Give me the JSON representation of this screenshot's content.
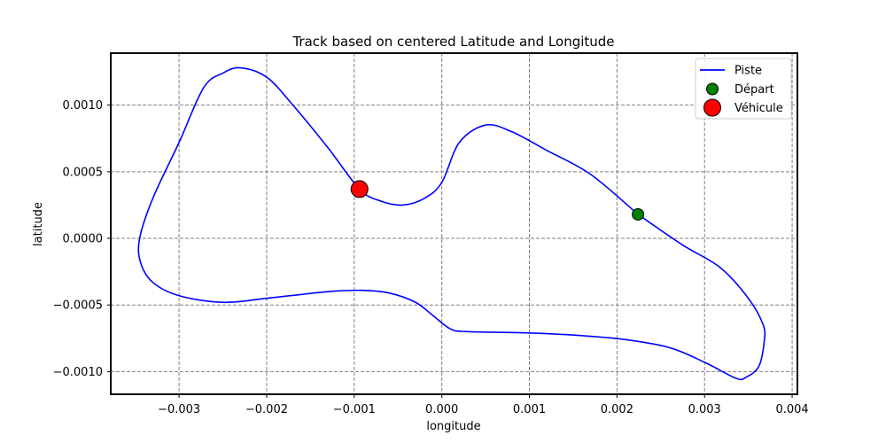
{
  "chart_data": {
    "type": "line",
    "title": "Track based on centered Latitude and Longitude",
    "xlabel": "longitude",
    "ylabel": "latitude",
    "xlim": [
      -0.00378,
      0.00406
    ],
    "ylim": [
      -0.00117,
      0.00139
    ],
    "grid": true,
    "grid_style": "dashed",
    "legend_position": "top-right",
    "x_ticks": [
      {
        "value": -0.003,
        "label": "−0.003"
      },
      {
        "value": -0.002,
        "label": "−0.002"
      },
      {
        "value": -0.001,
        "label": "−0.001"
      },
      {
        "value": 0.0,
        "label": "0.000"
      },
      {
        "value": 0.001,
        "label": "0.001"
      },
      {
        "value": 0.002,
        "label": "0.002"
      },
      {
        "value": 0.003,
        "label": "0.003"
      },
      {
        "value": 0.004,
        "label": "0.004"
      }
    ],
    "y_ticks": [
      {
        "value": 0.001,
        "label": "0.0010"
      },
      {
        "value": 0.0005,
        "label": "0.0005"
      },
      {
        "value": 0.0,
        "label": "0.0000"
      },
      {
        "value": -0.0005,
        "label": "−0.0005"
      },
      {
        "value": -0.001,
        "label": "−0.0010"
      }
    ],
    "series": [
      {
        "name": "Piste",
        "kind": "line",
        "color": "#0000ff",
        "points": [
          [
            0.00224,
            0.00018
          ],
          [
            0.00275,
            -5e-05
          ],
          [
            0.00318,
            -0.00022
          ],
          [
            0.0035,
            -0.00045
          ],
          [
            0.00367,
            -0.00065
          ],
          [
            0.00368,
            -0.00078
          ],
          [
            0.00362,
            -0.00096
          ],
          [
            0.00348,
            -0.00104
          ],
          [
            0.00336,
            -0.00105
          ],
          [
            0.003,
            -0.00093
          ],
          [
            0.0026,
            -0.00082
          ],
          [
            0.0021,
            -0.00076
          ],
          [
            0.0016,
            -0.00073
          ],
          [
            0.001,
            -0.00071
          ],
          [
            0.0003,
            -0.0007
          ],
          [
            0.0001,
            -0.00068
          ],
          [
            -0.0001,
            -0.00058
          ],
          [
            -0.0003,
            -0.00048
          ],
          [
            -0.0006,
            -0.00041
          ],
          [
            -0.0009,
            -0.00039
          ],
          [
            -0.0013,
            -0.0004
          ],
          [
            -0.002,
            -0.00045
          ],
          [
            -0.0025,
            -0.00048
          ],
          [
            -0.003,
            -0.00043
          ],
          [
            -0.0033,
            -0.00033
          ],
          [
            -0.00344,
            -0.00018
          ],
          [
            -0.00345,
            0.0
          ],
          [
            -0.0033,
            0.0003
          ],
          [
            -0.003,
            0.00072
          ],
          [
            -0.00272,
            0.00113
          ],
          [
            -0.0025,
            0.00124
          ],
          [
            -0.0023,
            0.00128
          ],
          [
            -0.002,
            0.00121
          ],
          [
            -0.0017,
            0.001
          ],
          [
            -0.0013,
            0.00068
          ],
          [
            -0.00094,
            0.00037
          ],
          [
            -0.0007,
            0.00028
          ],
          [
            -0.00045,
            0.00025
          ],
          [
            -0.0002,
            0.0003
          ],
          [
            0.0,
            0.00042
          ],
          [
            0.0002,
            0.00072
          ],
          [
            0.0005,
            0.00085
          ],
          [
            0.0008,
            0.0008
          ],
          [
            0.0012,
            0.00066
          ],
          [
            0.0017,
            0.00048
          ],
          [
            0.00224,
            0.00018
          ]
        ]
      },
      {
        "name": "Départ",
        "kind": "marker",
        "color": "#008000",
        "points": [
          [
            0.00224,
            0.00018
          ]
        ]
      },
      {
        "name": "Véhicule",
        "kind": "marker",
        "color": "#ff0000",
        "points": [
          [
            -0.00094,
            0.00037
          ]
        ]
      }
    ]
  }
}
